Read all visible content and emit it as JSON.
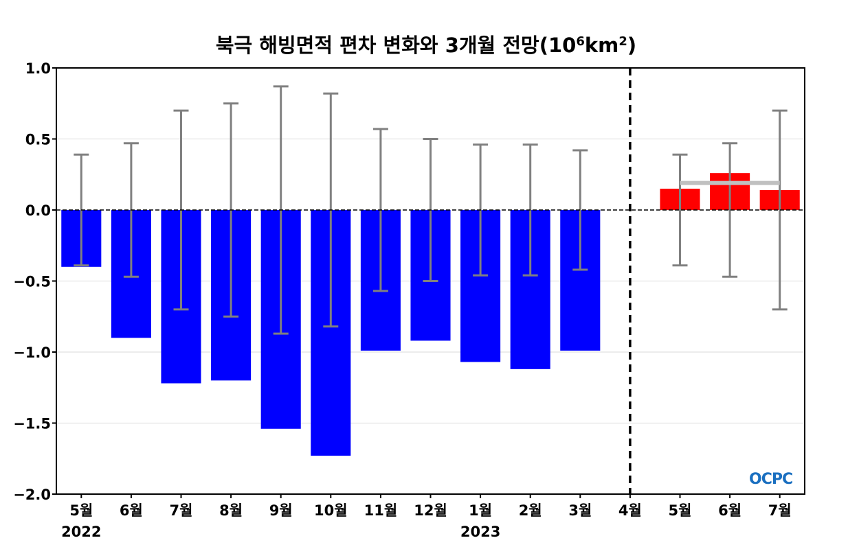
{
  "chart_data": {
    "type": "bar",
    "title": "북극 해빙면적 편차 변화와 3개월 전망",
    "title_unit_base": "10",
    "title_unit_exp": "6",
    "title_unit_mid": "km",
    "title_unit_exp2": "2",
    "categories": [
      "5월",
      "6월",
      "7월",
      "8월",
      "9월",
      "10월",
      "11월",
      "12월",
      "1월",
      "2월",
      "3월",
      "4월",
      "5월",
      "6월",
      "7월"
    ],
    "year_labels": [
      {
        "index": 0,
        "label": "2022"
      },
      {
        "index": 8,
        "label": "2023"
      }
    ],
    "ylim": [
      -2.0,
      1.0
    ],
    "yticks": [
      "1.0",
      "0.5",
      "0.0",
      "−0.5",
      "−1.0",
      "−1.5",
      "−2.0"
    ],
    "ytick_values": [
      1.0,
      0.5,
      0.0,
      -0.5,
      -1.0,
      -1.5,
      -2.0
    ],
    "grid": true,
    "series": [
      {
        "role": "observed",
        "color": "#0000ff",
        "values": [
          -0.4,
          -0.9,
          -1.22,
          -1.2,
          -1.54,
          -1.73,
          -0.99,
          -0.92,
          -1.07,
          -1.12,
          -0.99,
          0.0,
          null,
          null,
          null
        ]
      },
      {
        "role": "forecast",
        "color": "#ff0000",
        "values": [
          null,
          null,
          null,
          null,
          null,
          null,
          null,
          null,
          null,
          null,
          null,
          null,
          0.15,
          0.26,
          0.14
        ]
      }
    ],
    "error_bars": [
      0.39,
      0.47,
      0.7,
      0.75,
      0.87,
      0.82,
      0.57,
      0.5,
      0.46,
      0.46,
      0.42,
      null,
      0.39,
      0.47,
      0.7
    ],
    "forecast_divider_index": 11,
    "forecast_mean": {
      "value": 0.19,
      "from_index": 12,
      "to_index": 14,
      "color": "#c0c0c0"
    },
    "zero_line_style": "dashed",
    "logo": "OCPC"
  }
}
